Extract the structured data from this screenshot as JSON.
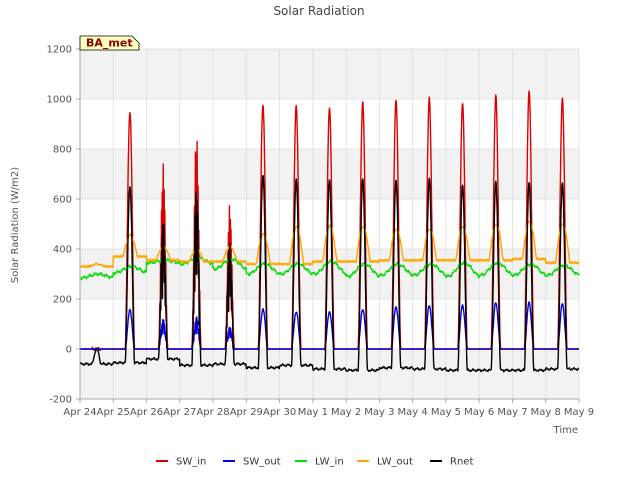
{
  "chart_data": {
    "type": "line",
    "title": "Solar Radiation",
    "xlabel": "Time",
    "ylabel": "Solar Radiation (W/m2)",
    "badge": "BA_met",
    "ylim": [
      -200,
      1200
    ],
    "yticks": [
      -200,
      0,
      200,
      400,
      600,
      800,
      1000,
      1200
    ],
    "xlim": [
      0,
      15
    ],
    "x_tick_labels": [
      "Apr 24",
      "Apr 25",
      "Apr 26",
      "Apr 27",
      "Apr 28",
      "Apr 29",
      "Apr 30",
      "May 1",
      "May 2",
      "May 3",
      "May 4",
      "May 5",
      "May 6",
      "May 7",
      "May 8",
      "May 9"
    ],
    "day_labels": [
      "Apr 24",
      "Apr 25",
      "Apr 26",
      "Apr 27",
      "Apr 28",
      "Apr 29",
      "Apr 30",
      "May 1",
      "May 2",
      "May 3",
      "May 4",
      "May 5",
      "May 6",
      "May 7",
      "May 8"
    ],
    "grid": true,
    "banded_background": true,
    "legend_position": "bottom-center",
    "x_unit": "days since Apr 24",
    "series": [
      {
        "name": "SW_in",
        "color": "#dd0000",
        "daily_peaks": [
          0,
          950,
          740,
          870,
          580,
          980,
          975,
          965,
          985,
          995,
          1000,
          980,
          1010,
          1030,
          1000
        ]
      },
      {
        "name": "SW_out",
        "color": "#0000dd",
        "daily_peaks": [
          0,
          155,
          120,
          130,
          90,
          160,
          150,
          150,
          160,
          170,
          175,
          175,
          185,
          185,
          180
        ]
      },
      {
        "name": "LW_in",
        "color": "#00dd00",
        "daily_peaks": [
          300,
          330,
          355,
          365,
          360,
          340,
          340,
          350,
          340,
          340,
          340,
          345,
          345,
          340,
          335
        ],
        "daily_troughs": [
          285,
          305,
          345,
          340,
          320,
          300,
          300,
          300,
          290,
          295,
          295,
          290,
          295,
          295,
          295
        ]
      },
      {
        "name": "LW_out",
        "color": "#ffa500",
        "daily_peaks": [
          340,
          455,
          410,
          400,
          410,
          460,
          490,
          495,
          490,
          480,
          480,
          490,
          500,
          510,
          500
        ],
        "daily_troughs": [
          330,
          370,
          355,
          350,
          350,
          340,
          340,
          350,
          350,
          355,
          355,
          355,
          355,
          360,
          345
        ]
      },
      {
        "name": "Rnet",
        "color": "#000000",
        "daily_peaks": [
          0,
          650,
          520,
          650,
          430,
          700,
          680,
          680,
          680,
          675,
          680,
          655,
          665,
          665,
          660
        ],
        "daily_troughs": [
          -60,
          -55,
          -40,
          -65,
          -60,
          -75,
          -65,
          -80,
          -85,
          -75,
          -80,
          -85,
          -85,
          -85,
          -80
        ]
      }
    ]
  }
}
